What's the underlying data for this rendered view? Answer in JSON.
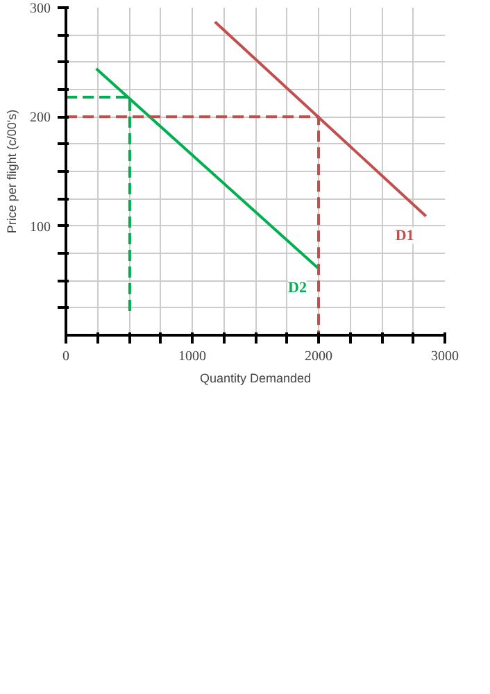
{
  "chart_data": {
    "type": "line",
    "xlabel": "Quantity Demanded",
    "ylabel": "Price per flight (c/00's)",
    "xlim": [
      0,
      3000
    ],
    "ylim": [
      0,
      300
    ],
    "xticks": [
      0,
      {
        "value": 250,
        "label": null
      },
      {
        "value": 500,
        "label": null
      },
      {
        "value": 750,
        "label": null
      },
      1000,
      {
        "value": 1250,
        "label": null
      },
      {
        "value": 1500,
        "label": null
      },
      {
        "value": 1750,
        "label": null
      },
      2000,
      {
        "value": 2250,
        "label": null
      },
      {
        "value": 2500,
        "label": null
      },
      {
        "value": 2750,
        "label": null
      },
      3000
    ],
    "yticks": [
      {
        "value": 25,
        "label": null
      },
      {
        "value": 50,
        "label": null
      },
      {
        "value": 75,
        "label": null
      },
      100,
      {
        "value": 125,
        "label": null
      },
      {
        "value": 150,
        "label": null
      },
      {
        "value": 175,
        "label": null
      },
      200,
      {
        "value": 225,
        "label": null
      },
      {
        "value": 250,
        "label": null
      },
      {
        "value": 275,
        "label": null
      },
      300
    ],
    "grid": true,
    "series": [
      {
        "name": "D1",
        "color": "#c0504d",
        "x": [
          1180,
          2850
        ],
        "values": [
          287,
          109
        ]
      },
      {
        "name": "D2",
        "color": "#00b050",
        "x": [
          240,
          2000
        ],
        "values": [
          244,
          61
        ]
      },
      {
        "color": "#c0504d",
        "line_style": "dashed",
        "x": [
          0,
          2000,
          2000
        ],
        "values": [
          200,
          200,
          0
        ]
      },
      {
        "color": "#00b050",
        "line_style": "dashed",
        "x": [
          0,
          505,
          505
        ],
        "values": [
          218,
          218,
          20
        ]
      }
    ]
  }
}
